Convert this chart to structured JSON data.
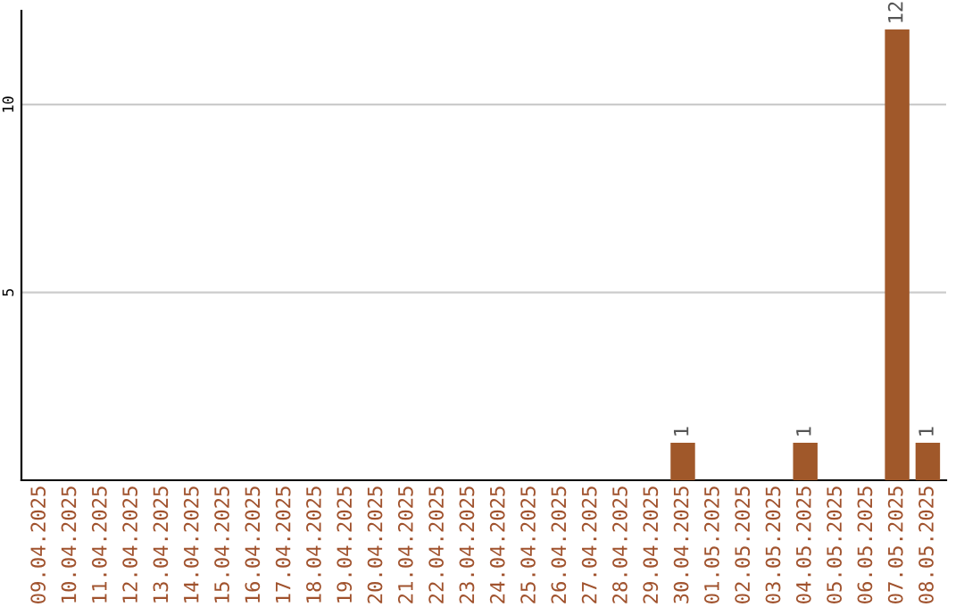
{
  "chart_data": {
    "type": "bar",
    "categories": [
      "09.04.2025",
      "10.04.2025",
      "11.04.2025",
      "12.04.2025",
      "13.04.2025",
      "14.04.2025",
      "15.04.2025",
      "16.04.2025",
      "17.04.2025",
      "18.04.2025",
      "19.04.2025",
      "20.04.2025",
      "21.04.2025",
      "22.04.2025",
      "23.04.2025",
      "24.04.2025",
      "25.04.2025",
      "26.04.2025",
      "27.04.2025",
      "28.04.2025",
      "29.04.2025",
      "30.04.2025",
      "01.05.2025",
      "02.05.2025",
      "03.05.2025",
      "04.05.2025",
      "05.05.2025",
      "06.05.2025",
      "07.05.2025",
      "08.05.2025"
    ],
    "values": [
      0,
      0,
      0,
      0,
      0,
      0,
      0,
      0,
      0,
      0,
      0,
      0,
      0,
      0,
      0,
      0,
      0,
      0,
      0,
      0,
      0,
      1,
      0,
      0,
      0,
      1,
      0,
      0,
      12,
      1
    ],
    "value_labels": [
      null,
      null,
      null,
      null,
      null,
      null,
      null,
      null,
      null,
      null,
      null,
      null,
      null,
      null,
      null,
      null,
      null,
      null,
      null,
      null,
      null,
      "1",
      null,
      null,
      null,
      "1",
      null,
      null,
      "12",
      "1"
    ],
    "color": "#a0582a",
    "ylim": [
      0,
      12.5
    ],
    "yticks": [
      5,
      10
    ],
    "grid": "y"
  }
}
